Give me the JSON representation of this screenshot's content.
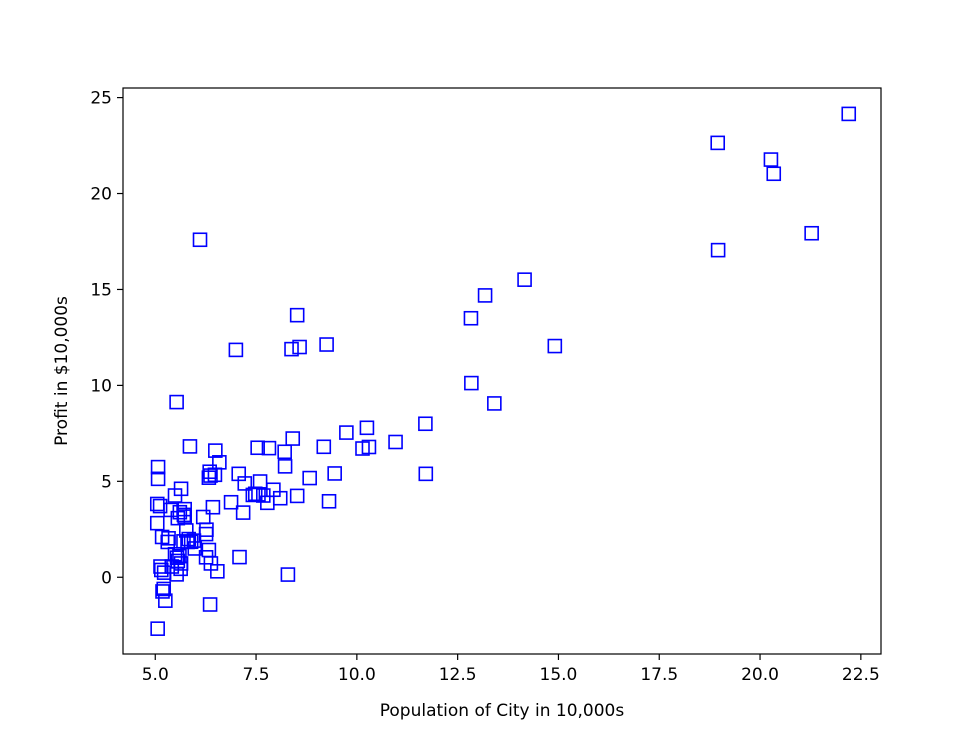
{
  "chart_data": {
    "type": "scatter",
    "title": "",
    "xlabel": "Population of City in 10,000s",
    "ylabel": "Profit in $10,000s",
    "xlim": [
      4.2,
      23.0
    ],
    "ylim": [
      -4.0,
      25.5
    ],
    "xticks": [
      5.0,
      7.5,
      10.0,
      12.5,
      15.0,
      17.5,
      20.0,
      22.5
    ],
    "xtick_labels": [
      "5.0",
      "7.5",
      "10.0",
      "12.5",
      "15.0",
      "17.5",
      "20.0",
      "22.5"
    ],
    "yticks": [
      0,
      5,
      10,
      15,
      20,
      25
    ],
    "ytick_labels": [
      "0",
      "5",
      "10",
      "15",
      "20",
      "25"
    ],
    "grid": false,
    "marker": "square-open",
    "marker_color": "#0000ff",
    "points": [
      [
        6.11,
        17.59
      ],
      [
        5.53,
        9.13
      ],
      [
        8.52,
        13.66
      ],
      [
        7.0,
        11.85
      ],
      [
        5.86,
        6.82
      ],
      [
        8.38,
        11.89
      ],
      [
        7.48,
        4.35
      ],
      [
        8.58,
        12.0
      ],
      [
        6.49,
        6.6
      ],
      [
        5.05,
        3.82
      ],
      [
        5.71,
        3.25
      ],
      [
        14.16,
        15.51
      ],
      [
        5.73,
        3.16
      ],
      [
        8.41,
        7.23
      ],
      [
        5.64,
        0.72
      ],
      [
        5.38,
        3.51
      ],
      [
        6.37,
        5.3
      ],
      [
        5.13,
        0.56
      ],
      [
        6.43,
        3.65
      ],
      [
        7.07,
        5.39
      ],
      [
        6.19,
        3.14
      ],
      [
        20.27,
        21.77
      ],
      [
        5.49,
        4.26
      ],
      [
        6.33,
        5.19
      ],
      [
        5.56,
        3.08
      ],
      [
        18.95,
        22.64
      ],
      [
        12.83,
        13.5
      ],
      [
        10.96,
        7.05
      ],
      [
        13.18,
        14.69
      ],
      [
        22.2,
        24.15
      ],
      [
        5.25,
        -1.22
      ],
      [
        6.59,
        5.99
      ],
      [
        9.25,
        12.13
      ],
      [
        5.89,
        1.85
      ],
      [
        8.21,
        6.54
      ],
      [
        7.93,
        4.56
      ],
      [
        8.1,
        4.12
      ],
      [
        5.61,
        3.39
      ],
      [
        12.84,
        10.12
      ],
      [
        6.35,
        5.5
      ],
      [
        5.41,
        0.56
      ],
      [
        6.88,
        3.91
      ],
      [
        11.71,
        5.39
      ],
      [
        5.77,
        2.44
      ],
      [
        7.82,
        6.73
      ],
      [
        7.09,
        1.05
      ],
      [
        5.07,
        5.13
      ],
      [
        5.8,
        1.84
      ],
      [
        11.7,
        8.0
      ],
      [
        5.54,
        1.02
      ],
      [
        7.54,
        6.75
      ],
      [
        5.31,
        1.84
      ],
      [
        7.42,
        4.29
      ],
      [
        7.6,
        4.99
      ],
      [
        6.33,
        1.42
      ],
      [
        6.36,
        -1.42
      ],
      [
        6.27,
        2.48
      ],
      [
        5.64,
        4.61
      ],
      [
        9.31,
        3.96
      ],
      [
        9.45,
        5.41
      ],
      [
        8.83,
        5.17
      ],
      [
        5.18,
        -0.74
      ],
      [
        21.28,
        17.93
      ],
      [
        14.91,
        12.05
      ],
      [
        18.96,
        17.05
      ],
      [
        7.22,
        4.89
      ],
      [
        5.07,
        5.74
      ],
      [
        5.73,
        3.55
      ],
      [
        7.78,
        3.88
      ],
      [
        5.12,
        3.71
      ],
      [
        5.33,
        2.03
      ],
      [
        5.22,
        0.24
      ],
      [
        5.53,
        0.15
      ],
      [
        5.98,
        1.5
      ],
      [
        5.06,
        -2.68
      ],
      [
        5.63,
        0.44
      ],
      [
        6.26,
        1.04
      ],
      [
        5.21,
        -0.61
      ],
      [
        6.38,
        0.72
      ],
      [
        6.54,
        0.31
      ],
      [
        5.17,
        2.1
      ],
      [
        5.05,
        2.82
      ],
      [
        5.7,
        1.87
      ],
      [
        5.83,
        1.99
      ],
      [
        5.56,
        0.85
      ],
      [
        5.96,
        1.91
      ],
      [
        8.29,
        0.14
      ],
      [
        6.48,
        5.34
      ],
      [
        7.68,
        4.26
      ],
      [
        7.18,
        3.37
      ],
      [
        7.56,
        4.32
      ],
      [
        8.22,
        5.78
      ],
      [
        9.18,
        6.8
      ],
      [
        9.74,
        7.54
      ],
      [
        10.14,
        6.71
      ],
      [
        10.25,
        7.79
      ],
      [
        10.3,
        6.79
      ],
      [
        8.52,
        4.24
      ],
      [
        13.41,
        9.06
      ],
      [
        20.34,
        21.03
      ],
      [
        5.15,
        0.38
      ],
      [
        5.6,
        1.1
      ],
      [
        5.49,
        1.2
      ],
      [
        6.26,
        2.25
      ]
    ]
  }
}
